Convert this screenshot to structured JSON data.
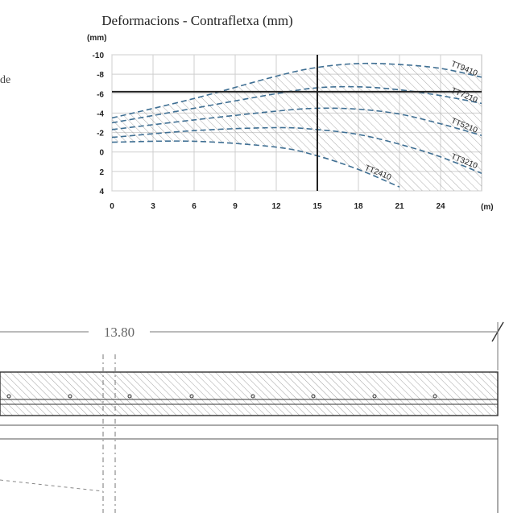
{
  "chart_data": {
    "type": "line",
    "title": "Deformacions - Contrafletxa (mm)",
    "xlabel": "",
    "ylabel": "",
    "x_unit": "(m)",
    "y_unit": "(mm)",
    "xlim": [
      0,
      27
    ],
    "ylim": [
      -10,
      4
    ],
    "y_inverted": true,
    "grid": true,
    "x_ticks": [
      0,
      3,
      6,
      9,
      12,
      15,
      18,
      21,
      24
    ],
    "y_ticks": [
      -10,
      -8,
      -6,
      -4,
      -2,
      0,
      2,
      4
    ],
    "reference_lines": {
      "x": 15,
      "y": -6.2
    },
    "series_style": "dashed",
    "series_color": "#3f6f93",
    "series": [
      {
        "name": "TT9410",
        "x": [
          0,
          6,
          12,
          15,
          18,
          21,
          24,
          27
        ],
        "y": [
          -3.5,
          -5.5,
          -7.8,
          -8.7,
          -9.1,
          -9.0,
          -8.6,
          -7.7
        ]
      },
      {
        "name": "TT7210",
        "x": [
          0,
          6,
          12,
          15,
          18,
          21,
          24,
          27
        ],
        "y": [
          -3.0,
          -4.5,
          -6.0,
          -6.6,
          -6.7,
          -6.4,
          -5.8,
          -5.0
        ]
      },
      {
        "name": "TT5210",
        "x": [
          0,
          6,
          12,
          15,
          18,
          21,
          24,
          27
        ],
        "y": [
          -2.3,
          -3.3,
          -4.2,
          -4.5,
          -4.4,
          -3.9,
          -2.9,
          -1.7
        ]
      },
      {
        "name": "TT3210",
        "x": [
          0,
          6,
          12,
          15,
          18,
          21,
          24,
          27
        ],
        "y": [
          -1.5,
          -2.2,
          -2.5,
          -2.3,
          -1.8,
          -0.8,
          0.5,
          2.2
        ]
      },
      {
        "name": "TT2410",
        "x": [
          0,
          6,
          12,
          15,
          18,
          21
        ],
        "y": [
          -1.0,
          -1.1,
          -0.5,
          0.4,
          1.8,
          3.6
        ]
      }
    ]
  },
  "fragments": {
    "side_text": "de",
    "dimension_label": "13.80"
  },
  "colors": {
    "curve": "#3f6f93",
    "hatch": "#9a9a9a",
    "axis": "#222222"
  }
}
